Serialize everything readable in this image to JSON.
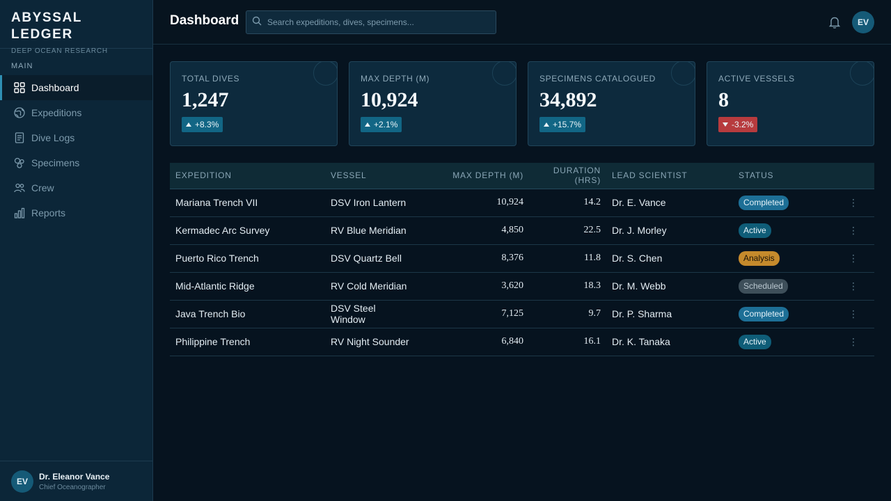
{
  "brand": {
    "title": "ABYSSAL LEDGER",
    "subtitle": "DEEP OCEAN RESEARCH"
  },
  "sidebar": {
    "section_label": "MAIN",
    "items": [
      {
        "label": "Dashboard",
        "icon": "grid-icon",
        "active": true
      },
      {
        "label": "Expeditions",
        "icon": "globe-icon",
        "active": false
      },
      {
        "label": "Dive Logs",
        "icon": "document-icon",
        "active": false
      },
      {
        "label": "Specimens",
        "icon": "specimen-icon",
        "active": false
      },
      {
        "label": "Crew",
        "icon": "people-icon",
        "active": false
      },
      {
        "label": "Reports",
        "icon": "bar-chart-icon",
        "active": false
      }
    ],
    "user": {
      "initials": "EV",
      "name": "Dr. Eleanor Vance",
      "role": "Chief Oceanographer"
    }
  },
  "header": {
    "title": "Dashboard",
    "search_placeholder": "Search expeditions, dives, specimens...",
    "avatar_initials": "EV"
  },
  "stats": [
    {
      "label": "TOTAL DIVES",
      "value": "1,247",
      "delta": "+8.3%",
      "direction": "up"
    },
    {
      "label": "MAX DEPTH (M)",
      "value": "10,924",
      "delta": "+2.1%",
      "direction": "up"
    },
    {
      "label": "SPECIMENS CATALOGUED",
      "value": "34,892",
      "delta": "+15.7%",
      "direction": "up"
    },
    {
      "label": "ACTIVE VESSELS",
      "value": "8",
      "delta": "-3.2%",
      "direction": "down"
    }
  ],
  "table": {
    "headers": [
      "EXPEDITION",
      "VESSEL",
      "MAX DEPTH (M)",
      "DURATION (HRS)",
      "LEAD SCIENTIST",
      "STATUS"
    ],
    "rows": [
      {
        "expedition": "Mariana Trench VII",
        "vessel": "DSV Iron Lantern",
        "depth": "10,924",
        "duration": "14.2",
        "scientist": "Dr. E. Vance",
        "status": "Completed"
      },
      {
        "expedition": "Kermadec Arc Survey",
        "vessel": "RV Blue Meridian",
        "depth": "4,850",
        "duration": "22.5",
        "scientist": "Dr. J. Morley",
        "status": "Active"
      },
      {
        "expedition": "Puerto Rico Trench",
        "vessel": "DSV Quartz Bell",
        "depth": "8,376",
        "duration": "11.8",
        "scientist": "Dr. S. Chen",
        "status": "Analysis"
      },
      {
        "expedition": "Mid-Atlantic Ridge",
        "vessel": "RV Cold Meridian",
        "depth": "3,620",
        "duration": "18.3",
        "scientist": "Dr. M. Webb",
        "status": "Scheduled"
      },
      {
        "expedition": "Java Trench Bio",
        "vessel": "DSV Steel Window",
        "depth": "7,125",
        "duration": "9.7",
        "scientist": "Dr. P. Sharma",
        "status": "Completed"
      },
      {
        "expedition": "Philippine Trench",
        "vessel": "RV Night Sounder",
        "depth": "6,840",
        "duration": "16.1",
        "scientist": "Dr. K. Tanaka",
        "status": "Active"
      }
    ]
  },
  "status_colors": {
    "Completed": {
      "bg": "#1d6f96",
      "fg": "#e6f3f9"
    },
    "Active": {
      "bg": "#0f5d78",
      "fg": "#e6f3f9"
    },
    "Analysis": {
      "bg": "#c58a2c",
      "fg": "#1a1206"
    },
    "Scheduled": {
      "bg": "#3e4f5a",
      "fg": "#b9c6ce"
    }
  },
  "colors": {
    "accent": "#2f8fb3",
    "up": "#126685",
    "down": "#b73b3e"
  }
}
